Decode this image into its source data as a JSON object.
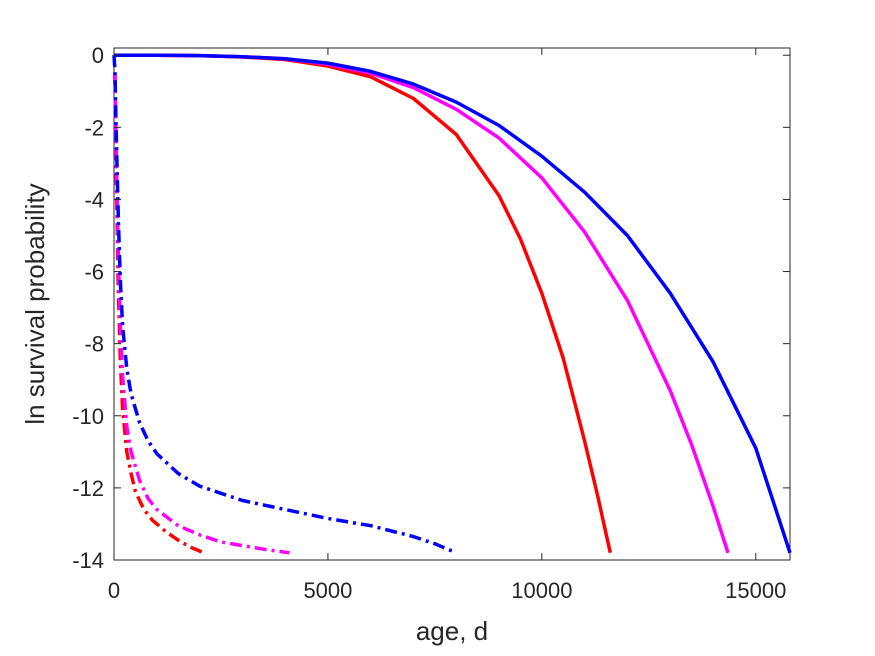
{
  "chart_data": {
    "type": "line",
    "title": "",
    "xlabel": "age, d",
    "ylabel": "ln survival probability",
    "xlim": [
      0,
      15800
    ],
    "ylim": [
      -14,
      0.2
    ],
    "xticks": [
      0,
      5000,
      10000,
      15000
    ],
    "xtick_labels": [
      "0",
      "5000",
      "10000",
      "15000"
    ],
    "yticks": [
      0,
      -2,
      -4,
      -6,
      -8,
      -10,
      -12,
      -14
    ],
    "ytick_labels": [
      "0",
      "-2",
      "-4",
      "-6",
      "-8",
      "-10",
      "-12",
      "-14"
    ],
    "grid": false,
    "legend": "none",
    "series": [
      {
        "color": "#ff0000",
        "style": "solid",
        "x": [
          0,
          1000,
          2000,
          3000,
          4000,
          5000,
          6000,
          7000,
          8000,
          9000,
          9500,
          10000,
          10500,
          11000,
          11300,
          11600
        ],
        "y": [
          0,
          0,
          -0.01,
          -0.05,
          -0.12,
          -0.3,
          -0.6,
          -1.2,
          -2.2,
          -3.9,
          -5.1,
          -6.6,
          -8.4,
          -10.7,
          -12.2,
          -13.8
        ]
      },
      {
        "color": "#ff00ff",
        "style": "solid",
        "x": [
          0,
          1000,
          2000,
          3000,
          4000,
          5000,
          6000,
          7000,
          8000,
          9000,
          10000,
          11000,
          12000,
          13000,
          13500,
          14000,
          14350
        ],
        "y": [
          0,
          0,
          -0.01,
          -0.04,
          -0.1,
          -0.25,
          -0.5,
          -0.9,
          -1.5,
          -2.3,
          -3.4,
          -4.9,
          -6.8,
          -9.3,
          -10.8,
          -12.5,
          -13.8
        ]
      },
      {
        "color": "#0000ff",
        "style": "solid",
        "x": [
          0,
          1000,
          2000,
          3000,
          4000,
          5000,
          6000,
          7000,
          8000,
          9000,
          10000,
          11000,
          12000,
          13000,
          14000,
          15000,
          15800
        ],
        "y": [
          0,
          0,
          -0.01,
          -0.04,
          -0.1,
          -0.22,
          -0.45,
          -0.8,
          -1.3,
          -1.95,
          -2.8,
          -3.8,
          -5.0,
          -6.6,
          -8.5,
          -10.9,
          -13.8
        ]
      },
      {
        "color": "#ff0000",
        "style": "dashdot",
        "x": [
          20,
          50,
          100,
          150,
          200,
          300,
          400,
          500,
          700,
          900,
          1200,
          1500,
          1800,
          2100
        ],
        "y": [
          -0.5,
          -3,
          -6.5,
          -8.5,
          -9.8,
          -11,
          -11.6,
          -12.1,
          -12.6,
          -12.9,
          -13.2,
          -13.45,
          -13.65,
          -13.8
        ]
      },
      {
        "color": "#ff00ff",
        "style": "dashdot",
        "x": [
          20,
          50,
          100,
          150,
          200,
          300,
          400,
          600,
          800,
          1000,
          1500,
          2000,
          2500,
          3000,
          3500,
          4100
        ],
        "y": [
          -0.5,
          -2.5,
          -5.5,
          -7.5,
          -8.9,
          -10.3,
          -11,
          -11.8,
          -12.3,
          -12.6,
          -13.05,
          -13.3,
          -13.5,
          -13.6,
          -13.7,
          -13.8
        ]
      },
      {
        "color": "#0000ff",
        "style": "dashdot",
        "x": [
          0,
          20,
          50,
          100,
          150,
          200,
          300,
          400,
          600,
          800,
          1000,
          1500,
          2000,
          3000,
          4000,
          5000,
          6000,
          7000,
          7500,
          8000
        ],
        "y": [
          0,
          -0.4,
          -2,
          -4.5,
          -6.3,
          -7.5,
          -8.7,
          -9.4,
          -10.2,
          -10.7,
          -11.05,
          -11.6,
          -11.95,
          -12.35,
          -12.6,
          -12.85,
          -13.05,
          -13.35,
          -13.55,
          -13.8
        ]
      }
    ]
  }
}
